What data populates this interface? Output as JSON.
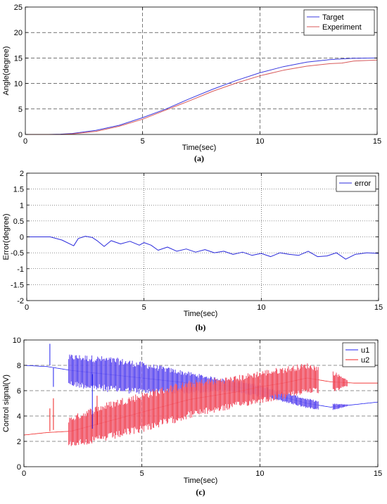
{
  "chart_data": [
    {
      "type": "line",
      "panel": "(a)",
      "xlabel": "Time(sec)",
      "ylabel": "Angle(degree)",
      "xlim": [
        0,
        15
      ],
      "ylim": [
        0,
        25
      ],
      "xticks": [
        0,
        5,
        10,
        15
      ],
      "yticks": [
        0,
        5,
        10,
        15,
        20,
        25
      ],
      "grid": true,
      "legend_position": "top-right",
      "colors": {
        "Target": "#3a3adf",
        "Experiment": "#d85a5a"
      },
      "series": [
        {
          "name": "Target",
          "x": [
            0,
            1,
            1.5,
            2,
            3,
            4,
            5,
            6,
            7,
            8,
            9,
            10,
            11,
            12,
            13,
            14,
            15
          ],
          "values": [
            0,
            0,
            0.05,
            0.2,
            0.8,
            1.8,
            3.3,
            5.0,
            7.0,
            8.9,
            10.6,
            12.1,
            13.3,
            14.2,
            14.7,
            14.95,
            15.0
          ]
        },
        {
          "name": "Experiment",
          "x": [
            0,
            1,
            1.5,
            2,
            3,
            4,
            5,
            6,
            7,
            8,
            9,
            10,
            11,
            11.5,
            12,
            13,
            13.5,
            14,
            15
          ],
          "values": [
            0,
            0,
            0,
            0.1,
            0.6,
            1.6,
            3.0,
            4.8,
            6.6,
            8.5,
            10.1,
            11.5,
            12.6,
            13.0,
            13.4,
            13.9,
            14.0,
            14.4,
            14.6
          ]
        }
      ]
    },
    {
      "type": "line",
      "panel": "(b)",
      "xlabel": "Time(sec)",
      "ylabel": "Error(degree)",
      "xlim": [
        0,
        15
      ],
      "ylim": [
        -2,
        2
      ],
      "xticks": [
        0,
        5,
        10,
        15
      ],
      "yticks": [
        -2,
        -1.5,
        -1,
        -0.5,
        0,
        0.5,
        1,
        1.5,
        2
      ],
      "grid": true,
      "legend_position": "top-right",
      "colors": {
        "error": "#2a2adc"
      },
      "series": [
        {
          "name": "error",
          "x": [
            0,
            1,
            1.5,
            2,
            2.2,
            2.5,
            2.8,
            3,
            3.3,
            3.6,
            4,
            4.4,
            4.8,
            5,
            5.3,
            5.6,
            6,
            6.4,
            6.8,
            7.2,
            7.6,
            8,
            8.4,
            8.8,
            9.2,
            9.6,
            10,
            10.4,
            10.8,
            11.2,
            11.6,
            12,
            12.4,
            12.8,
            13.2,
            13.6,
            14,
            14.5,
            15
          ],
          "values": [
            0,
            0,
            -0.1,
            -0.28,
            -0.05,
            0.02,
            -0.02,
            -0.12,
            -0.3,
            -0.12,
            -0.22,
            -0.14,
            -0.26,
            -0.18,
            -0.26,
            -0.42,
            -0.32,
            -0.45,
            -0.38,
            -0.48,
            -0.4,
            -0.5,
            -0.45,
            -0.55,
            -0.48,
            -0.58,
            -0.52,
            -0.62,
            -0.5,
            -0.55,
            -0.58,
            -0.45,
            -0.62,
            -0.6,
            -0.5,
            -0.7,
            -0.55,
            -0.5,
            -0.52
          ]
        }
      ]
    },
    {
      "type": "line",
      "panel": "(c)",
      "xlabel": "Time(sec)",
      "ylabel": "Control signal(V)",
      "xlim": [
        0,
        15
      ],
      "ylim": [
        0,
        10
      ],
      "xticks": [
        0,
        5,
        10,
        15
      ],
      "yticks": [
        0,
        2,
        4,
        6,
        8,
        10
      ],
      "grid": true,
      "legend_position": "top-right",
      "colors": {
        "u1": "#1f1ff0",
        "u2": "#f02020",
        "halo": "#f4c2f0"
      },
      "series": [
        {
          "name": "u1",
          "x": [
            0,
            1,
            2,
            3,
            4,
            5,
            6,
            7,
            8,
            9,
            10,
            11,
            12,
            13,
            14,
            15
          ],
          "values": [
            8.0,
            7.9,
            7.6,
            7.4,
            7.2,
            7.0,
            6.8,
            6.6,
            6.5,
            6.3,
            6.0,
            5.5,
            5.0,
            4.7,
            4.9,
            5.1
          ],
          "spread": [
            0,
            0.2,
            1.3,
            1.4,
            1.4,
            1.3,
            1.1,
            0.9,
            0.6,
            0.5,
            0.5,
            0.4,
            0.4,
            0.3,
            0,
            0
          ]
        },
        {
          "name": "u2",
          "x": [
            0,
            1,
            2,
            3,
            4,
            5,
            6,
            7,
            8,
            9,
            10,
            11,
            12,
            13,
            14,
            15
          ],
          "values": [
            2.5,
            2.7,
            2.8,
            3.3,
            3.8,
            4.3,
            4.8,
            5.3,
            5.6,
            5.9,
            6.3,
            6.6,
            7.0,
            6.7,
            6.6,
            6.6
          ],
          "spread": [
            0,
            0.4,
            1.2,
            1.5,
            1.6,
            1.6,
            1.6,
            1.5,
            1.4,
            1.3,
            1.3,
            1.3,
            1.2,
            1.0,
            0,
            0
          ]
        }
      ]
    }
  ],
  "captions": [
    "(a)",
    "(b)",
    "(c)"
  ]
}
